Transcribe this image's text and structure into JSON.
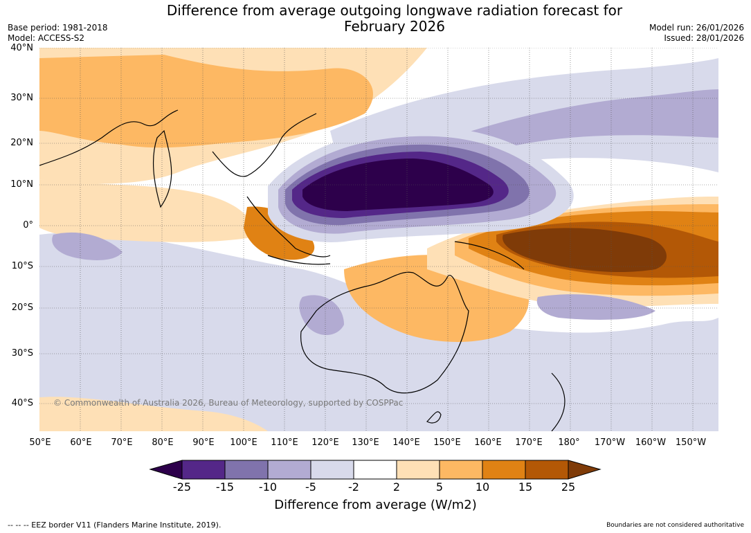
{
  "title": {
    "line1": "Difference from average outgoing longwave radiation forecast for",
    "line2": "February 2026"
  },
  "meta": {
    "base_period": "Base period: 1981-2018",
    "model": "Model: ACCESS-S2",
    "model_run": "Model run: 26/01/2026",
    "issued": "Issued: 28/01/2026"
  },
  "map": {
    "lat_labels": [
      "40°N",
      "30°N",
      "20°N",
      "10°N",
      "0°",
      "10°S",
      "20°S",
      "30°S",
      "40°S"
    ],
    "lon_labels": [
      "50°E",
      "60°E",
      "70°E",
      "80°E",
      "90°E",
      "100°E",
      "110°E",
      "120°E",
      "130°E",
      "140°E",
      "150°E",
      "160°E",
      "170°E",
      "180°",
      "170°W",
      "160°W",
      "150°W"
    ],
    "copyright": "© Commonwealth of Australia 2026, Bureau of Meteorology, supported by COSPPac"
  },
  "colorbar": {
    "ticks": [
      "-25",
      "-15",
      "-10",
      "-5",
      "-2",
      "2",
      "5",
      "10",
      "15",
      "25"
    ],
    "colors": [
      "#2d004b",
      "#542788",
      "#8073ac",
      "#b2abd2",
      "#d8daeb",
      "#ffffff",
      "#fee0b6",
      "#fdb863",
      "#e08214",
      "#b35806",
      "#7f3b08"
    ],
    "title": "Difference from average (W/m2)"
  },
  "footer": {
    "eez": "--  --  -- EEZ border V11 (Flanders Marine Institute, 2019).",
    "boundaries": "Boundaries are not considered authoritative"
  }
}
